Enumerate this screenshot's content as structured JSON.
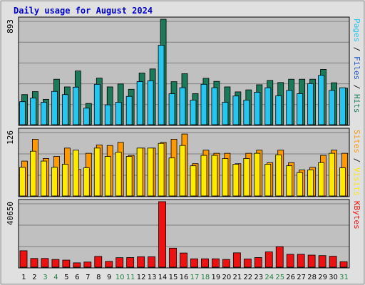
{
  "chart_data": {
    "type": "bar",
    "title": "Daily usage for August 2024",
    "days": [
      "1",
      "2",
      "3",
      "4",
      "5",
      "6",
      "7",
      "8",
      "9",
      "10",
      "11",
      "12",
      "13",
      "14",
      "15",
      "16",
      "17",
      "18",
      "19",
      "20",
      "21",
      "22",
      "23",
      "24",
      "25",
      "26",
      "27",
      "28",
      "29",
      "30",
      "31"
    ],
    "weekend_days": [
      "3",
      "4",
      "10",
      "11",
      "17",
      "18",
      "24",
      "25",
      "31"
    ],
    "colors": {
      "title": "#0000cc",
      "background": "#c0c0c0",
      "frame": "#e0e0e0",
      "grid": "#808080",
      "hits": "#1a7a5a",
      "files": "#26c6f0",
      "pages": "#26c6f0",
      "visits": "#ff9900",
      "sites": "#ffea00",
      "kbytes": "#ee1111",
      "weekday_label": "#000000",
      "weekend_label": "#208040"
    },
    "panels": [
      {
        "id": "top",
        "ytick": "893",
        "ymax": 893,
        "axis_label": [
          {
            "text": "Pages",
            "color": "#26c6f0"
          },
          {
            "text": " / ",
            "color": "#1a1a1a"
          },
          {
            "text": "Files",
            "color": "#1a55cc"
          },
          {
            "text": " / ",
            "color": "#1a1a1a"
          },
          {
            "text": "Hits",
            "color": "#1a7a5a"
          }
        ],
        "series": [
          {
            "name": "Hits",
            "color": "#1a7a5a",
            "values": [
              255,
              280,
              215,
              385,
              320,
              455,
              180,
              395,
              320,
              345,
              300,
              438,
              472,
              893,
              364,
              432,
              263,
              393,
              367,
              320,
              278,
              295,
              338,
              375,
              357,
              385,
              385,
              385,
              468,
              355,
              310
            ]
          },
          {
            "name": "Files",
            "color": "#26c6f0",
            "values": [
              195,
              225,
              190,
              282,
              255,
              318,
              140,
              342,
              168,
              190,
              240,
              365,
              372,
              673,
              262,
              313,
              208,
              342,
              313,
              190,
              243,
              208,
              275,
              313,
              245,
              290,
              263,
              348,
              418,
              290,
              313
            ]
          }
        ]
      },
      {
        "id": "middle",
        "ytick": "126",
        "ymax": 126,
        "axis_label": [
          {
            "text": "Sites",
            "color": "#ff9900"
          },
          {
            "text": " / ",
            "color": "#1a1a1a"
          },
          {
            "text": "Visits",
            "color": "#ffea00"
          }
        ],
        "series": [
          {
            "name": "Visits",
            "color": "#ff9900",
            "values": [
              67,
              109,
              72,
              76,
              92,
              51,
              82,
              98,
              97,
              103,
              78,
              92,
              92,
              103,
              109,
              119,
              62,
              88,
              82,
              82,
              62,
              82,
              88,
              64,
              88,
              64,
              50,
              55,
              78,
              88,
              82
            ]
          },
          {
            "name": "Sites",
            "color": "#ffea00",
            "values": [
              55,
              86,
              67,
              55,
              61,
              88,
              54,
              92,
              76,
              84,
              76,
              92,
              92,
              101,
              73,
              97,
              58,
              78,
              78,
              72,
              61,
              72,
              82,
              61,
              79,
              58,
              45,
              50,
              64,
              82,
              54
            ]
          }
        ]
      },
      {
        "id": "bottom",
        "ytick": "40650",
        "ymax": 40650,
        "axis_label": [
          {
            "text": "KBytes",
            "color": "#ee1111"
          }
        ],
        "series": [
          {
            "name": "KBytes",
            "color": "#ee1111",
            "values": [
              10200,
              5400,
              5400,
              4800,
              4400,
              2700,
              3200,
              6700,
              3600,
              5900,
              6000,
              6500,
              6500,
              40650,
              11800,
              8800,
              5200,
              5200,
              5200,
              4800,
              8900,
              5100,
              6000,
              9500,
              12700,
              8000,
              8000,
              7500,
              7200,
              6800,
              3400
            ]
          }
        ]
      }
    ]
  }
}
